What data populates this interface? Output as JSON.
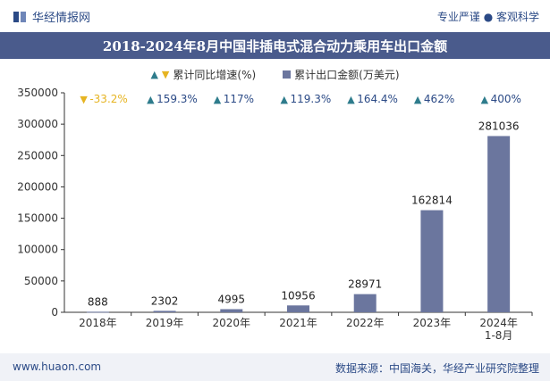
{
  "header": {
    "brand": "华经情报网",
    "tagline": "专业严谨 ● 客观科学"
  },
  "footer": {
    "website": "www.huaon.com",
    "source": "数据来源：中国海关，华经产业研究院整理"
  },
  "colors": {
    "bar": "#6b769e",
    "title_bg": "#4a5b8c",
    "up": "#2e7c8c",
    "down": "#e6b422"
  },
  "chart_data": {
    "type": "bar",
    "title": "2018-2024年8月中国非插电式混合动力乘用车出口金额",
    "categories": [
      "2018年",
      "2019年",
      "2020年",
      "2021年",
      "2022年",
      "2023年",
      "2024年1-8月"
    ],
    "series": [
      {
        "name": "累计出口金额(万美元)",
        "values": [
          888,
          2302,
          4995,
          10956,
          28971,
          162814,
          281036
        ]
      },
      {
        "name": "累计同比增速(%)",
        "values": [
          "-33.2%",
          "159.3%",
          "117%",
          "119.3%",
          "164.4%",
          "462%",
          "400%"
        ]
      }
    ],
    "ylim": [
      0,
      350000
    ],
    "yticks": [
      0,
      50000,
      100000,
      150000,
      200000,
      250000,
      300000,
      350000
    ],
    "legend": "top-center",
    "grid": false
  }
}
